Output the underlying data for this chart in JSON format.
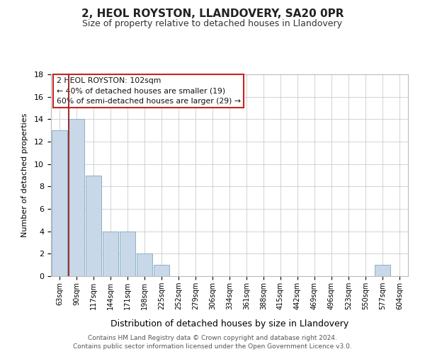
{
  "title": "2, HEOL ROYSTON, LLANDOVERY, SA20 0PR",
  "subtitle": "Size of property relative to detached houses in Llandovery",
  "xlabel": "Distribution of detached houses by size in Llandovery",
  "ylabel": "Number of detached properties",
  "bins": [
    "63sqm",
    "90sqm",
    "117sqm",
    "144sqm",
    "171sqm",
    "198sqm",
    "225sqm",
    "252sqm",
    "279sqm",
    "306sqm",
    "334sqm",
    "361sqm",
    "388sqm",
    "415sqm",
    "442sqm",
    "469sqm",
    "496sqm",
    "523sqm",
    "550sqm",
    "577sqm",
    "604sqm"
  ],
  "values": [
    13,
    14,
    9,
    4,
    4,
    2,
    1,
    0,
    0,
    0,
    0,
    0,
    0,
    0,
    0,
    0,
    0,
    0,
    0,
    1,
    0
  ],
  "bar_color": "#c8d8e8",
  "bar_edge_color": "#8cb0c8",
  "ylim": [
    0,
    18
  ],
  "yticks": [
    0,
    2,
    4,
    6,
    8,
    10,
    12,
    14,
    16,
    18
  ],
  "marker_line_color": "#993333",
  "annotation_line1": "2 HEOL ROYSTON: 102sqm",
  "annotation_line2": "← 40% of detached houses are smaller (19)",
  "annotation_line3": "60% of semi-detached houses are larger (29) →",
  "footer_line1": "Contains HM Land Registry data © Crown copyright and database right 2024.",
  "footer_line2": "Contains public sector information licensed under the Open Government Licence v3.0.",
  "background_color": "#ffffff",
  "grid_color": "#cccccc"
}
